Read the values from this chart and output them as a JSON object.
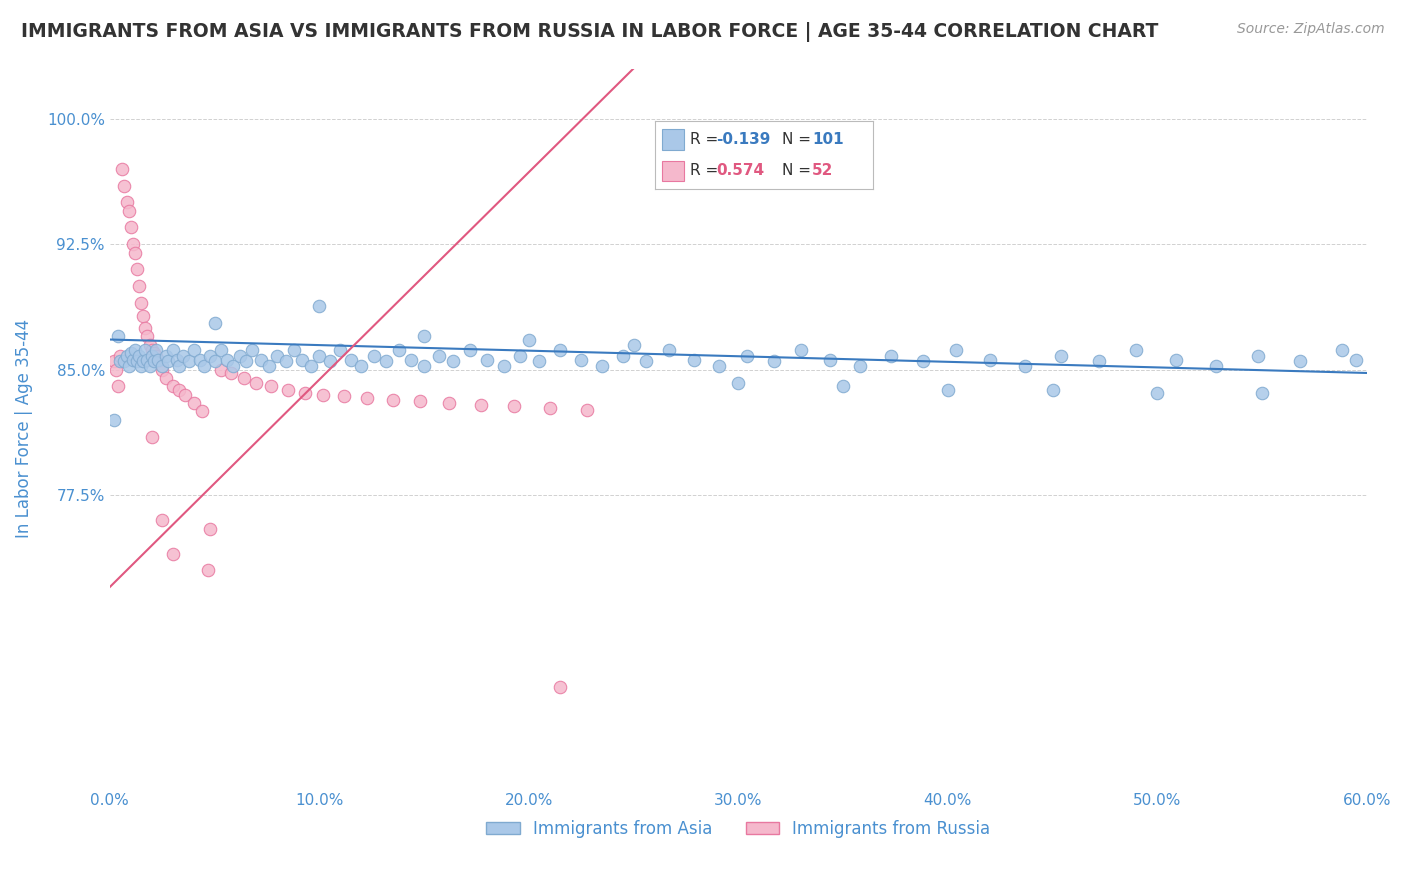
{
  "title": "IMMIGRANTS FROM ASIA VS IMMIGRANTS FROM RUSSIA IN LABOR FORCE | AGE 35-44 CORRELATION CHART",
  "source": "Source: ZipAtlas.com",
  "ylabel": "In Labor Force | Age 35-44",
  "xlim": [
    0.0,
    0.6
  ],
  "ylim": [
    0.6,
    1.03
  ],
  "yticks": [
    0.775,
    0.85,
    0.925,
    1.0
  ],
  "ytick_labels": [
    "77.5%",
    "85.0%",
    "92.5%",
    "100.0%"
  ],
  "xticks": [
    0.0,
    0.1,
    0.2,
    0.3,
    0.4,
    0.5,
    0.6
  ],
  "xtick_labels": [
    "0.0%",
    "10.0%",
    "20.0%",
    "30.0%",
    "40.0%",
    "50.0%",
    "60.0%"
  ],
  "asia_color": "#aac8e8",
  "asia_edge_color": "#80aad0",
  "russia_color": "#f5b8cc",
  "russia_edge_color": "#e878a0",
  "trendline_asia_color": "#3a7abf",
  "trendline_russia_color": "#e05880",
  "asia_R": -0.139,
  "asia_N": 101,
  "russia_R": 0.574,
  "russia_N": 52,
  "legend_label_asia": "Immigrants from Asia",
  "legend_label_russia": "Immigrants from Russia",
  "background_color": "#ffffff",
  "grid_color": "#cccccc",
  "axis_label_color": "#4a90d0",
  "title_color": "#333333",
  "marker_size": 9,
  "asia_x": [
    0.002,
    0.004,
    0.005,
    0.007,
    0.008,
    0.009,
    0.01,
    0.011,
    0.012,
    0.013,
    0.014,
    0.015,
    0.016,
    0.017,
    0.018,
    0.019,
    0.02,
    0.021,
    0.022,
    0.023,
    0.025,
    0.027,
    0.028,
    0.03,
    0.032,
    0.033,
    0.035,
    0.038,
    0.04,
    0.043,
    0.045,
    0.048,
    0.05,
    0.053,
    0.056,
    0.059,
    0.062,
    0.065,
    0.068,
    0.072,
    0.076,
    0.08,
    0.084,
    0.088,
    0.092,
    0.096,
    0.1,
    0.105,
    0.11,
    0.115,
    0.12,
    0.126,
    0.132,
    0.138,
    0.144,
    0.15,
    0.157,
    0.164,
    0.172,
    0.18,
    0.188,
    0.196,
    0.205,
    0.215,
    0.225,
    0.235,
    0.245,
    0.256,
    0.267,
    0.279,
    0.291,
    0.304,
    0.317,
    0.33,
    0.344,
    0.358,
    0.373,
    0.388,
    0.404,
    0.42,
    0.437,
    0.454,
    0.472,
    0.49,
    0.509,
    0.528,
    0.548,
    0.568,
    0.588,
    0.595,
    0.05,
    0.1,
    0.15,
    0.2,
    0.25,
    0.3,
    0.35,
    0.4,
    0.45,
    0.5,
    0.55
  ],
  "asia_y": [
    0.82,
    0.87,
    0.855,
    0.855,
    0.858,
    0.852,
    0.86,
    0.856,
    0.862,
    0.855,
    0.858,
    0.852,
    0.855,
    0.862,
    0.856,
    0.852,
    0.858,
    0.855,
    0.862,
    0.856,
    0.852,
    0.858,
    0.855,
    0.862,
    0.856,
    0.852,
    0.858,
    0.855,
    0.862,
    0.856,
    0.852,
    0.858,
    0.855,
    0.862,
    0.856,
    0.852,
    0.858,
    0.855,
    0.862,
    0.856,
    0.852,
    0.858,
    0.855,
    0.862,
    0.856,
    0.852,
    0.858,
    0.855,
    0.862,
    0.856,
    0.852,
    0.858,
    0.855,
    0.862,
    0.856,
    0.852,
    0.858,
    0.855,
    0.862,
    0.856,
    0.852,
    0.858,
    0.855,
    0.862,
    0.856,
    0.852,
    0.858,
    0.855,
    0.862,
    0.856,
    0.852,
    0.858,
    0.855,
    0.862,
    0.856,
    0.852,
    0.858,
    0.855,
    0.862,
    0.856,
    0.852,
    0.858,
    0.855,
    0.862,
    0.856,
    0.852,
    0.858,
    0.855,
    0.862,
    0.856,
    0.878,
    0.888,
    0.87,
    0.868,
    0.865,
    0.842,
    0.84,
    0.838,
    0.838,
    0.836,
    0.836
  ],
  "russia_x": [
    0.002,
    0.003,
    0.004,
    0.005,
    0.006,
    0.007,
    0.008,
    0.009,
    0.01,
    0.011,
    0.012,
    0.013,
    0.014,
    0.015,
    0.016,
    0.017,
    0.018,
    0.019,
    0.02,
    0.021,
    0.022,
    0.023,
    0.025,
    0.027,
    0.03,
    0.033,
    0.036,
    0.04,
    0.044,
    0.048,
    0.053,
    0.058,
    0.064,
    0.07,
    0.077,
    0.085,
    0.093,
    0.102,
    0.112,
    0.123,
    0.135,
    0.148,
    0.162,
    0.177,
    0.193,
    0.21,
    0.228,
    0.047,
    0.02,
    0.025,
    0.03,
    0.215
  ],
  "russia_y": [
    0.855,
    0.85,
    0.84,
    0.858,
    0.97,
    0.96,
    0.95,
    0.945,
    0.935,
    0.925,
    0.92,
    0.91,
    0.9,
    0.89,
    0.882,
    0.875,
    0.87,
    0.865,
    0.862,
    0.86,
    0.858,
    0.855,
    0.85,
    0.845,
    0.84,
    0.838,
    0.835,
    0.83,
    0.825,
    0.755,
    0.85,
    0.848,
    0.845,
    0.842,
    0.84,
    0.838,
    0.836,
    0.835,
    0.834,
    0.833,
    0.832,
    0.831,
    0.83,
    0.829,
    0.828,
    0.827,
    0.826,
    0.73,
    0.81,
    0.76,
    0.74,
    0.66
  ],
  "trendline_asia_x0": 0.0,
  "trendline_asia_x1": 0.6,
  "trendline_asia_y0": 0.868,
  "trendline_asia_y1": 0.848,
  "trendline_russia_x0": 0.0,
  "trendline_russia_x1": 0.25,
  "trendline_russia_y0": 0.72,
  "trendline_russia_y1": 1.03
}
